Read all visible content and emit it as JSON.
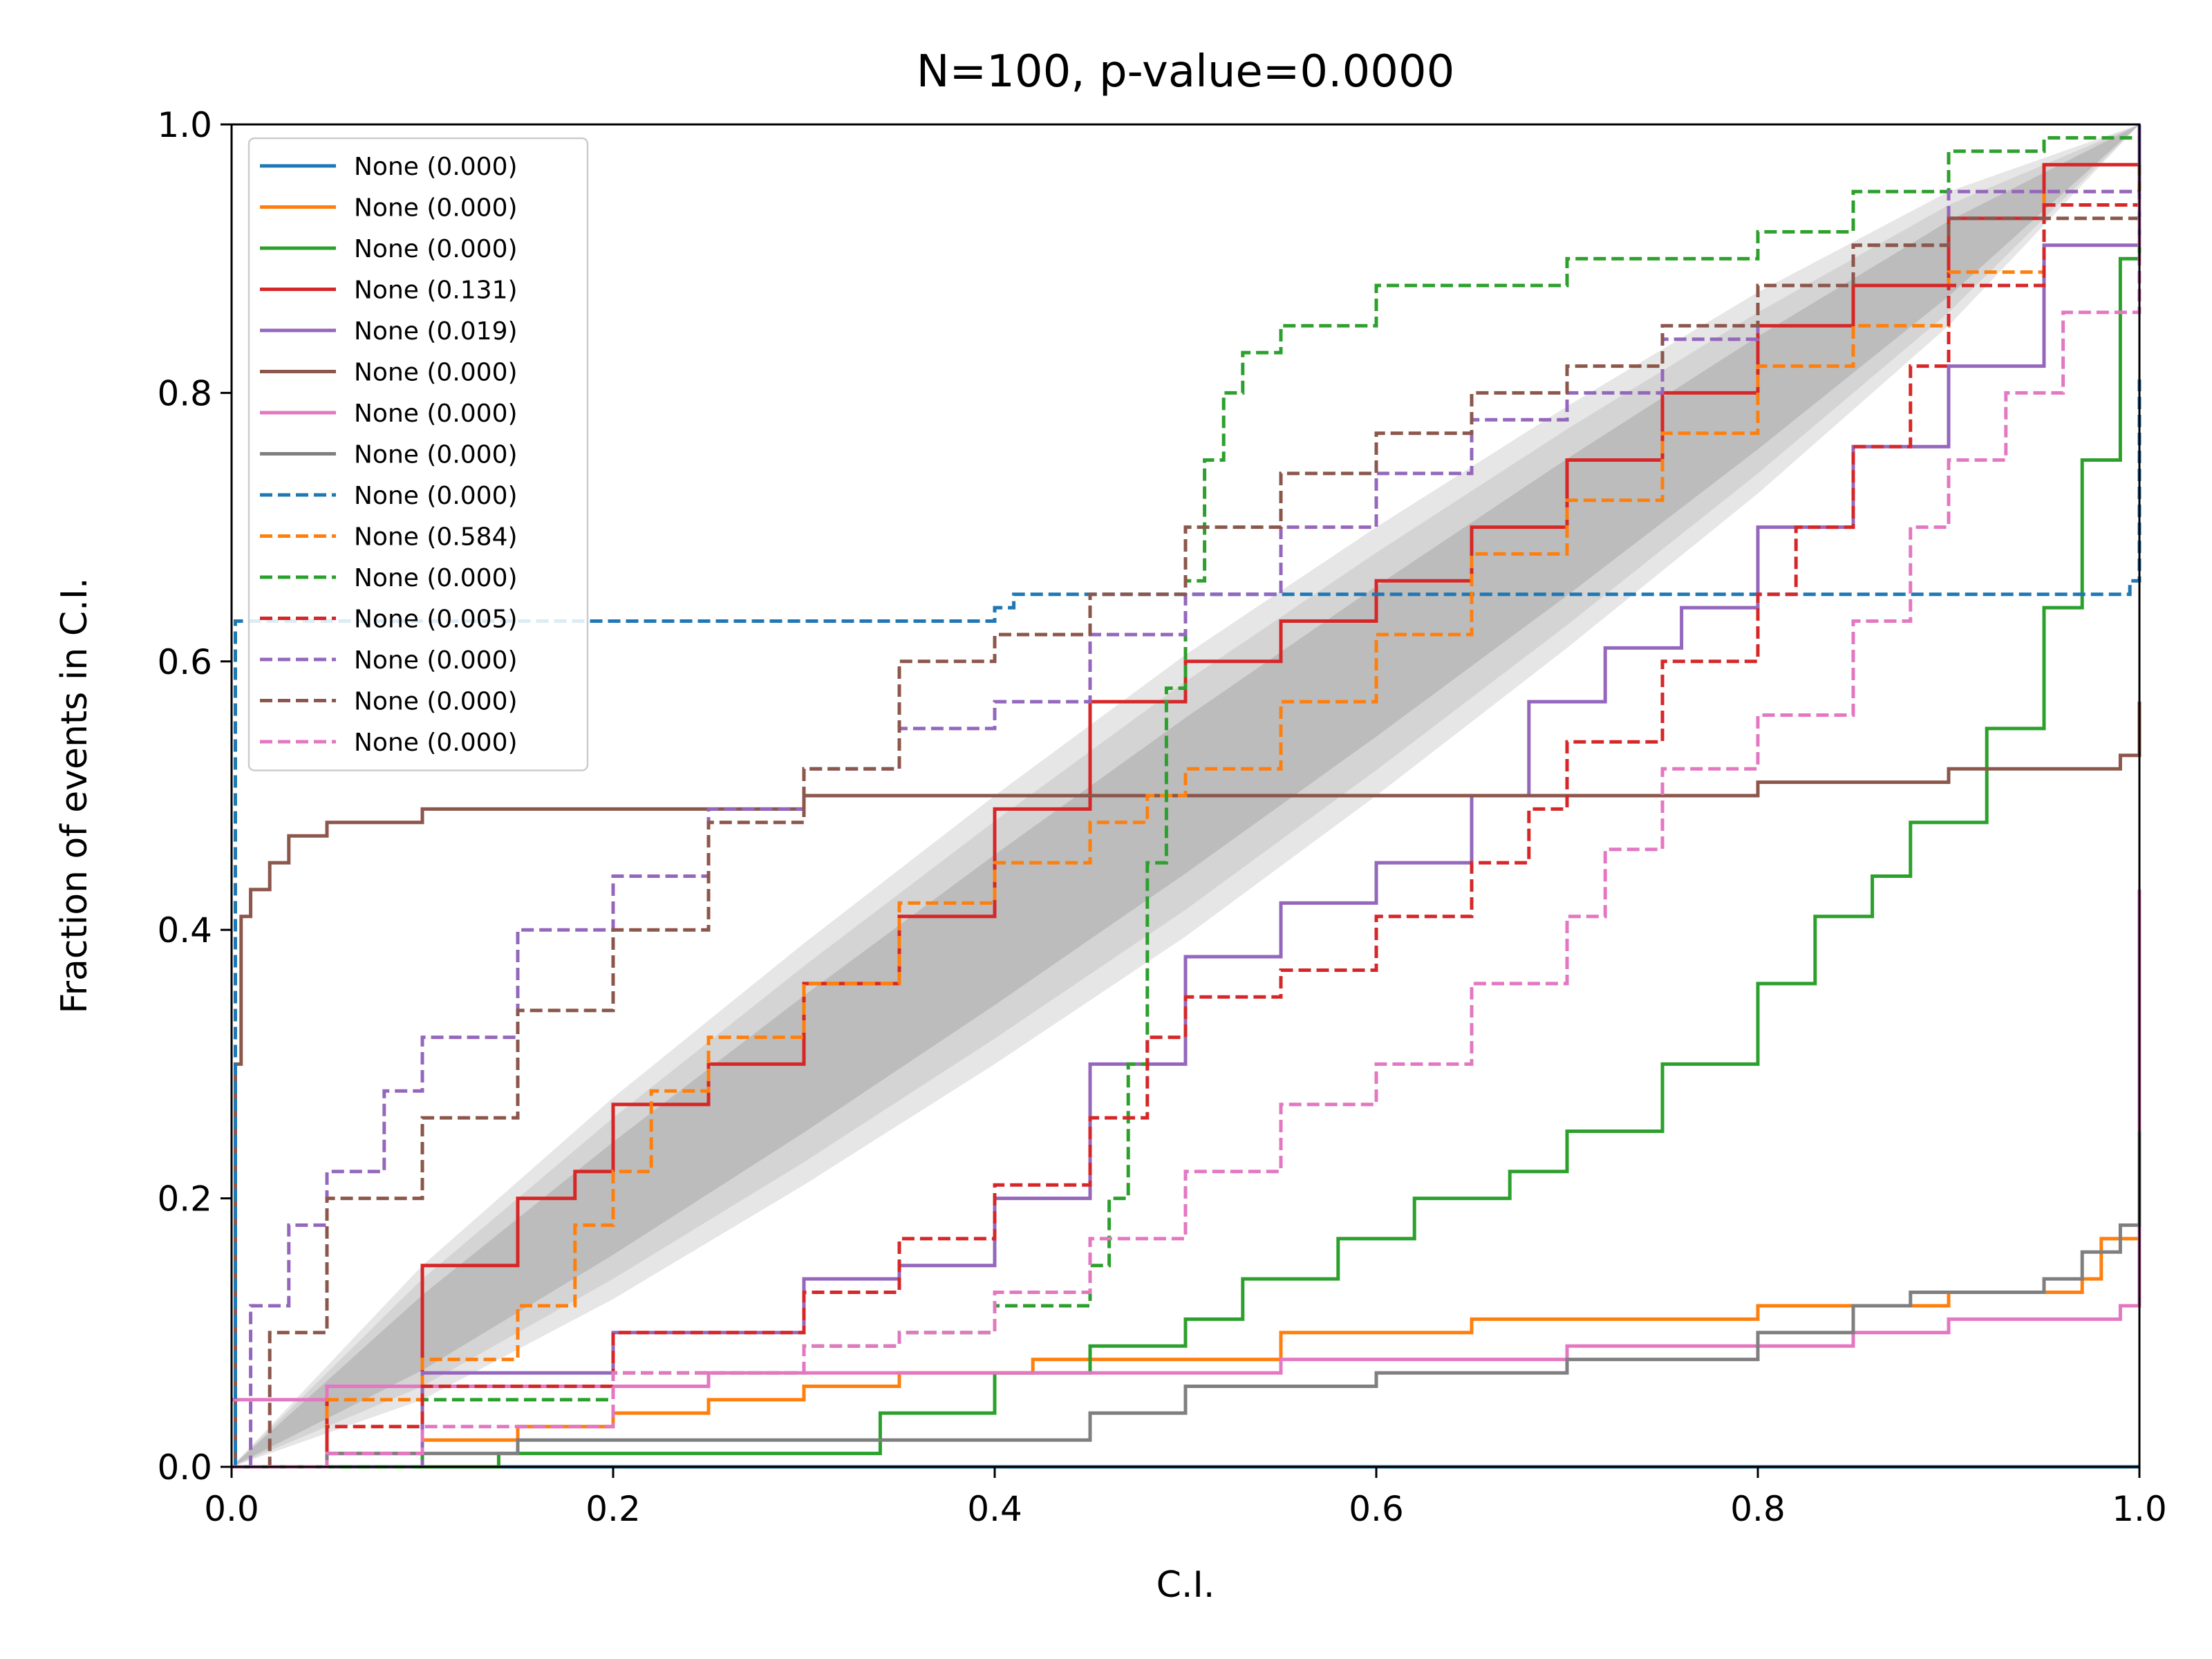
{
  "chart_data": {
    "type": "line",
    "title": "N=100, p-value=0.0000",
    "xlabel": "C.I.",
    "ylabel": "Fraction of events in C.I.",
    "xlim": [
      0,
      1
    ],
    "ylim": [
      0,
      1
    ],
    "xticks": [
      "0.0",
      "0.2",
      "0.4",
      "0.6",
      "0.8",
      "1.0"
    ],
    "yticks": [
      "0.0",
      "0.2",
      "0.4",
      "0.6",
      "0.8",
      "1.0"
    ],
    "grid": false,
    "legend_position": "upper-left",
    "bands": [
      {
        "color": "#e6e6e6",
        "halfwidth": [
          0.0,
          0.05,
          0.075,
          0.09,
          0.1,
          0.105,
          0.1,
          0.09,
          0.075,
          0.05,
          0.0
        ]
      },
      {
        "color": "#d4d4d4",
        "halfwidth": [
          0.0,
          0.04,
          0.06,
          0.073,
          0.081,
          0.085,
          0.081,
          0.073,
          0.06,
          0.04,
          0.0
        ]
      },
      {
        "color": "#bcbcbc",
        "halfwidth": [
          0.0,
          0.028,
          0.042,
          0.051,
          0.056,
          0.058,
          0.056,
          0.051,
          0.042,
          0.028,
          0.0
        ]
      }
    ],
    "series": [
      {
        "name": "None (0.000)",
        "color": "#1f77b4",
        "dash": false,
        "points": [
          [
            0,
            0
          ],
          [
            1,
            0
          ]
        ]
      },
      {
        "name": "None (0.000)",
        "color": "#ff7f0e",
        "dash": false,
        "points": [
          [
            0,
            0
          ],
          [
            0.05,
            0.01
          ],
          [
            0.1,
            0.02
          ],
          [
            0.15,
            0.03
          ],
          [
            0.2,
            0.04
          ],
          [
            0.25,
            0.05
          ],
          [
            0.3,
            0.06
          ],
          [
            0.35,
            0.07
          ],
          [
            0.42,
            0.08
          ],
          [
            0.55,
            0.1
          ],
          [
            0.65,
            0.11
          ],
          [
            0.8,
            0.12
          ],
          [
            0.9,
            0.13
          ],
          [
            0.97,
            0.14
          ],
          [
            0.98,
            0.17
          ],
          [
            1,
            0.17
          ]
        ]
      },
      {
        "name": "None (0.000)",
        "color": "#2ca02c",
        "dash": false,
        "points": [
          [
            0,
            0
          ],
          [
            0.14,
            0.01
          ],
          [
            0.29,
            0.01
          ],
          [
            0.34,
            0.04
          ],
          [
            0.4,
            0.07
          ],
          [
            0.45,
            0.09
          ],
          [
            0.5,
            0.11
          ],
          [
            0.53,
            0.14
          ],
          [
            0.58,
            0.17
          ],
          [
            0.62,
            0.2
          ],
          [
            0.67,
            0.22
          ],
          [
            0.7,
            0.25
          ],
          [
            0.75,
            0.3
          ],
          [
            0.8,
            0.36
          ],
          [
            0.83,
            0.41
          ],
          [
            0.86,
            0.44
          ],
          [
            0.88,
            0.48
          ],
          [
            0.92,
            0.55
          ],
          [
            0.95,
            0.64
          ],
          [
            0.97,
            0.75
          ],
          [
            0.99,
            0.9
          ],
          [
            1,
            1
          ]
        ]
      },
      {
        "name": "None (0.131)",
        "color": "#d62728",
        "dash": false,
        "points": [
          [
            0,
            0
          ],
          [
            0.05,
            0.06
          ],
          [
            0.1,
            0.15
          ],
          [
            0.15,
            0.2
          ],
          [
            0.18,
            0.22
          ],
          [
            0.2,
            0.27
          ],
          [
            0.25,
            0.3
          ],
          [
            0.3,
            0.36
          ],
          [
            0.35,
            0.41
          ],
          [
            0.4,
            0.49
          ],
          [
            0.45,
            0.57
          ],
          [
            0.5,
            0.6
          ],
          [
            0.55,
            0.63
          ],
          [
            0.6,
            0.66
          ],
          [
            0.65,
            0.7
          ],
          [
            0.7,
            0.75
          ],
          [
            0.75,
            0.8
          ],
          [
            0.8,
            0.85
          ],
          [
            0.85,
            0.88
          ],
          [
            0.9,
            0.93
          ],
          [
            0.95,
            0.97
          ],
          [
            1,
            1
          ]
        ]
      },
      {
        "name": "None (0.019)",
        "color": "#9467bd",
        "dash": false,
        "points": [
          [
            0,
            0
          ],
          [
            0.1,
            0.07
          ],
          [
            0.2,
            0.1
          ],
          [
            0.3,
            0.14
          ],
          [
            0.35,
            0.15
          ],
          [
            0.4,
            0.2
          ],
          [
            0.45,
            0.3
          ],
          [
            0.5,
            0.38
          ],
          [
            0.55,
            0.42
          ],
          [
            0.6,
            0.45
          ],
          [
            0.65,
            0.5
          ],
          [
            0.68,
            0.57
          ],
          [
            0.72,
            0.61
          ],
          [
            0.76,
            0.64
          ],
          [
            0.8,
            0.7
          ],
          [
            0.85,
            0.76
          ],
          [
            0.9,
            0.82
          ],
          [
            0.95,
            0.91
          ],
          [
            1,
            1
          ]
        ]
      },
      {
        "name": "None (0.000)",
        "color": "#8c564b",
        "dash": false,
        "points": [
          [
            0,
            0
          ],
          [
            0.002,
            0.3
          ],
          [
            0.005,
            0.41
          ],
          [
            0.01,
            0.43
          ],
          [
            0.02,
            0.45
          ],
          [
            0.03,
            0.47
          ],
          [
            0.05,
            0.48
          ],
          [
            0.1,
            0.49
          ],
          [
            0.2,
            0.49
          ],
          [
            0.3,
            0.5
          ],
          [
            0.5,
            0.5
          ],
          [
            0.7,
            0.5
          ],
          [
            0.8,
            0.51
          ],
          [
            0.9,
            0.52
          ],
          [
            0.98,
            0.52
          ],
          [
            0.99,
            0.53
          ],
          [
            1,
            0.57
          ]
        ]
      },
      {
        "name": "None (0.000)",
        "color": "#e377c2",
        "dash": false,
        "points": [
          [
            0,
            0.05
          ],
          [
            0.05,
            0.06
          ],
          [
            0.2,
            0.06
          ],
          [
            0.25,
            0.07
          ],
          [
            0.45,
            0.07
          ],
          [
            0.55,
            0.08
          ],
          [
            0.7,
            0.09
          ],
          [
            0.85,
            0.1
          ],
          [
            0.9,
            0.11
          ],
          [
            0.99,
            0.12
          ],
          [
            1,
            0.43
          ]
        ]
      },
      {
        "name": "None (0.000)",
        "color": "#7f7f7f",
        "dash": false,
        "points": [
          [
            0,
            0
          ],
          [
            0.05,
            0.01
          ],
          [
            0.1,
            0.01
          ],
          [
            0.15,
            0.02
          ],
          [
            0.35,
            0.02
          ],
          [
            0.45,
            0.04
          ],
          [
            0.5,
            0.06
          ],
          [
            0.6,
            0.07
          ],
          [
            0.7,
            0.08
          ],
          [
            0.8,
            0.1
          ],
          [
            0.85,
            0.12
          ],
          [
            0.88,
            0.13
          ],
          [
            0.95,
            0.14
          ],
          [
            0.97,
            0.16
          ],
          [
            0.99,
            0.18
          ],
          [
            1,
            0.25
          ]
        ]
      },
      {
        "name": "None (0.000)",
        "color": "#1f77b4",
        "dash": true,
        "points": [
          [
            0,
            0
          ],
          [
            0.002,
            0.63
          ],
          [
            0.2,
            0.63
          ],
          [
            0.4,
            0.64
          ],
          [
            0.41,
            0.65
          ],
          [
            0.5,
            0.65
          ],
          [
            0.8,
            0.65
          ],
          [
            0.99,
            0.65
          ],
          [
            0.995,
            0.66
          ],
          [
            1,
            0.81
          ]
        ]
      },
      {
        "name": "None (0.584)",
        "color": "#ff7f0e",
        "dash": true,
        "points": [
          [
            0,
            0
          ],
          [
            0.05,
            0.05
          ],
          [
            0.1,
            0.08
          ],
          [
            0.15,
            0.12
          ],
          [
            0.18,
            0.18
          ],
          [
            0.2,
            0.22
          ],
          [
            0.22,
            0.28
          ],
          [
            0.25,
            0.32
          ],
          [
            0.3,
            0.36
          ],
          [
            0.35,
            0.42
          ],
          [
            0.4,
            0.45
          ],
          [
            0.45,
            0.48
          ],
          [
            0.48,
            0.5
          ],
          [
            0.5,
            0.52
          ],
          [
            0.55,
            0.57
          ],
          [
            0.6,
            0.62
          ],
          [
            0.65,
            0.68
          ],
          [
            0.7,
            0.72
          ],
          [
            0.75,
            0.77
          ],
          [
            0.8,
            0.82
          ],
          [
            0.85,
            0.85
          ],
          [
            0.9,
            0.89
          ],
          [
            0.95,
            0.95
          ],
          [
            1,
            1
          ]
        ]
      },
      {
        "name": "None (0.000)",
        "color": "#2ca02c",
        "dash": true,
        "points": [
          [
            0,
            0
          ],
          [
            0.1,
            0.05
          ],
          [
            0.2,
            0.07
          ],
          [
            0.3,
            0.09
          ],
          [
            0.35,
            0.1
          ],
          [
            0.4,
            0.12
          ],
          [
            0.45,
            0.15
          ],
          [
            0.46,
            0.2
          ],
          [
            0.47,
            0.3
          ],
          [
            0.48,
            0.45
          ],
          [
            0.49,
            0.58
          ],
          [
            0.5,
            0.66
          ],
          [
            0.51,
            0.75
          ],
          [
            0.52,
            0.8
          ],
          [
            0.53,
            0.83
          ],
          [
            0.55,
            0.85
          ],
          [
            0.6,
            0.88
          ],
          [
            0.7,
            0.9
          ],
          [
            0.8,
            0.92
          ],
          [
            0.85,
            0.95
          ],
          [
            0.9,
            0.98
          ],
          [
            0.95,
            0.99
          ],
          [
            1,
            1
          ]
        ]
      },
      {
        "name": "None (0.005)",
        "color": "#d62728",
        "dash": true,
        "points": [
          [
            0,
            0
          ],
          [
            0.05,
            0.03
          ],
          [
            0.1,
            0.06
          ],
          [
            0.2,
            0.1
          ],
          [
            0.3,
            0.13
          ],
          [
            0.35,
            0.17
          ],
          [
            0.4,
            0.21
          ],
          [
            0.45,
            0.26
          ],
          [
            0.48,
            0.32
          ],
          [
            0.5,
            0.35
          ],
          [
            0.55,
            0.37
          ],
          [
            0.6,
            0.41
          ],
          [
            0.65,
            0.45
          ],
          [
            0.68,
            0.49
          ],
          [
            0.7,
            0.54
          ],
          [
            0.75,
            0.6
          ],
          [
            0.8,
            0.65
          ],
          [
            0.82,
            0.7
          ],
          [
            0.85,
            0.76
          ],
          [
            0.88,
            0.82
          ],
          [
            0.9,
            0.88
          ],
          [
            0.95,
            0.94
          ],
          [
            1,
            1
          ]
        ]
      },
      {
        "name": "None (0.000)",
        "color": "#9467bd",
        "dash": true,
        "points": [
          [
            0,
            0
          ],
          [
            0.01,
            0.12
          ],
          [
            0.03,
            0.18
          ],
          [
            0.05,
            0.22
          ],
          [
            0.08,
            0.28
          ],
          [
            0.1,
            0.32
          ],
          [
            0.15,
            0.4
          ],
          [
            0.2,
            0.44
          ],
          [
            0.25,
            0.49
          ],
          [
            0.3,
            0.52
          ],
          [
            0.35,
            0.55
          ],
          [
            0.4,
            0.57
          ],
          [
            0.45,
            0.62
          ],
          [
            0.5,
            0.65
          ],
          [
            0.55,
            0.7
          ],
          [
            0.6,
            0.74
          ],
          [
            0.65,
            0.78
          ],
          [
            0.7,
            0.8
          ],
          [
            0.75,
            0.84
          ],
          [
            0.8,
            0.88
          ],
          [
            0.85,
            0.91
          ],
          [
            0.9,
            0.95
          ],
          [
            1,
            1
          ]
        ]
      },
      {
        "name": "None (0.000)",
        "color": "#8c564b",
        "dash": true,
        "points": [
          [
            0,
            0
          ],
          [
            0.02,
            0.1
          ],
          [
            0.05,
            0.2
          ],
          [
            0.1,
            0.26
          ],
          [
            0.15,
            0.34
          ],
          [
            0.2,
            0.4
          ],
          [
            0.25,
            0.48
          ],
          [
            0.3,
            0.52
          ],
          [
            0.35,
            0.6
          ],
          [
            0.4,
            0.62
          ],
          [
            0.45,
            0.65
          ],
          [
            0.5,
            0.7
          ],
          [
            0.55,
            0.74
          ],
          [
            0.6,
            0.77
          ],
          [
            0.65,
            0.8
          ],
          [
            0.7,
            0.82
          ],
          [
            0.75,
            0.85
          ],
          [
            0.8,
            0.88
          ],
          [
            0.85,
            0.91
          ],
          [
            0.9,
            0.93
          ],
          [
            1,
            0.97
          ]
        ]
      },
      {
        "name": "None (0.000)",
        "color": "#e377c2",
        "dash": true,
        "points": [
          [
            0,
            0
          ],
          [
            0.05,
            0.01
          ],
          [
            0.1,
            0.03
          ],
          [
            0.2,
            0.07
          ],
          [
            0.3,
            0.09
          ],
          [
            0.35,
            0.1
          ],
          [
            0.4,
            0.13
          ],
          [
            0.45,
            0.17
          ],
          [
            0.5,
            0.22
          ],
          [
            0.55,
            0.27
          ],
          [
            0.6,
            0.3
          ],
          [
            0.65,
            0.36
          ],
          [
            0.7,
            0.41
          ],
          [
            0.72,
            0.46
          ],
          [
            0.75,
            0.52
          ],
          [
            0.8,
            0.56
          ],
          [
            0.85,
            0.63
          ],
          [
            0.88,
            0.7
          ],
          [
            0.9,
            0.75
          ],
          [
            0.93,
            0.8
          ],
          [
            0.96,
            0.86
          ],
          [
            1,
            0.95
          ]
        ]
      }
    ]
  }
}
